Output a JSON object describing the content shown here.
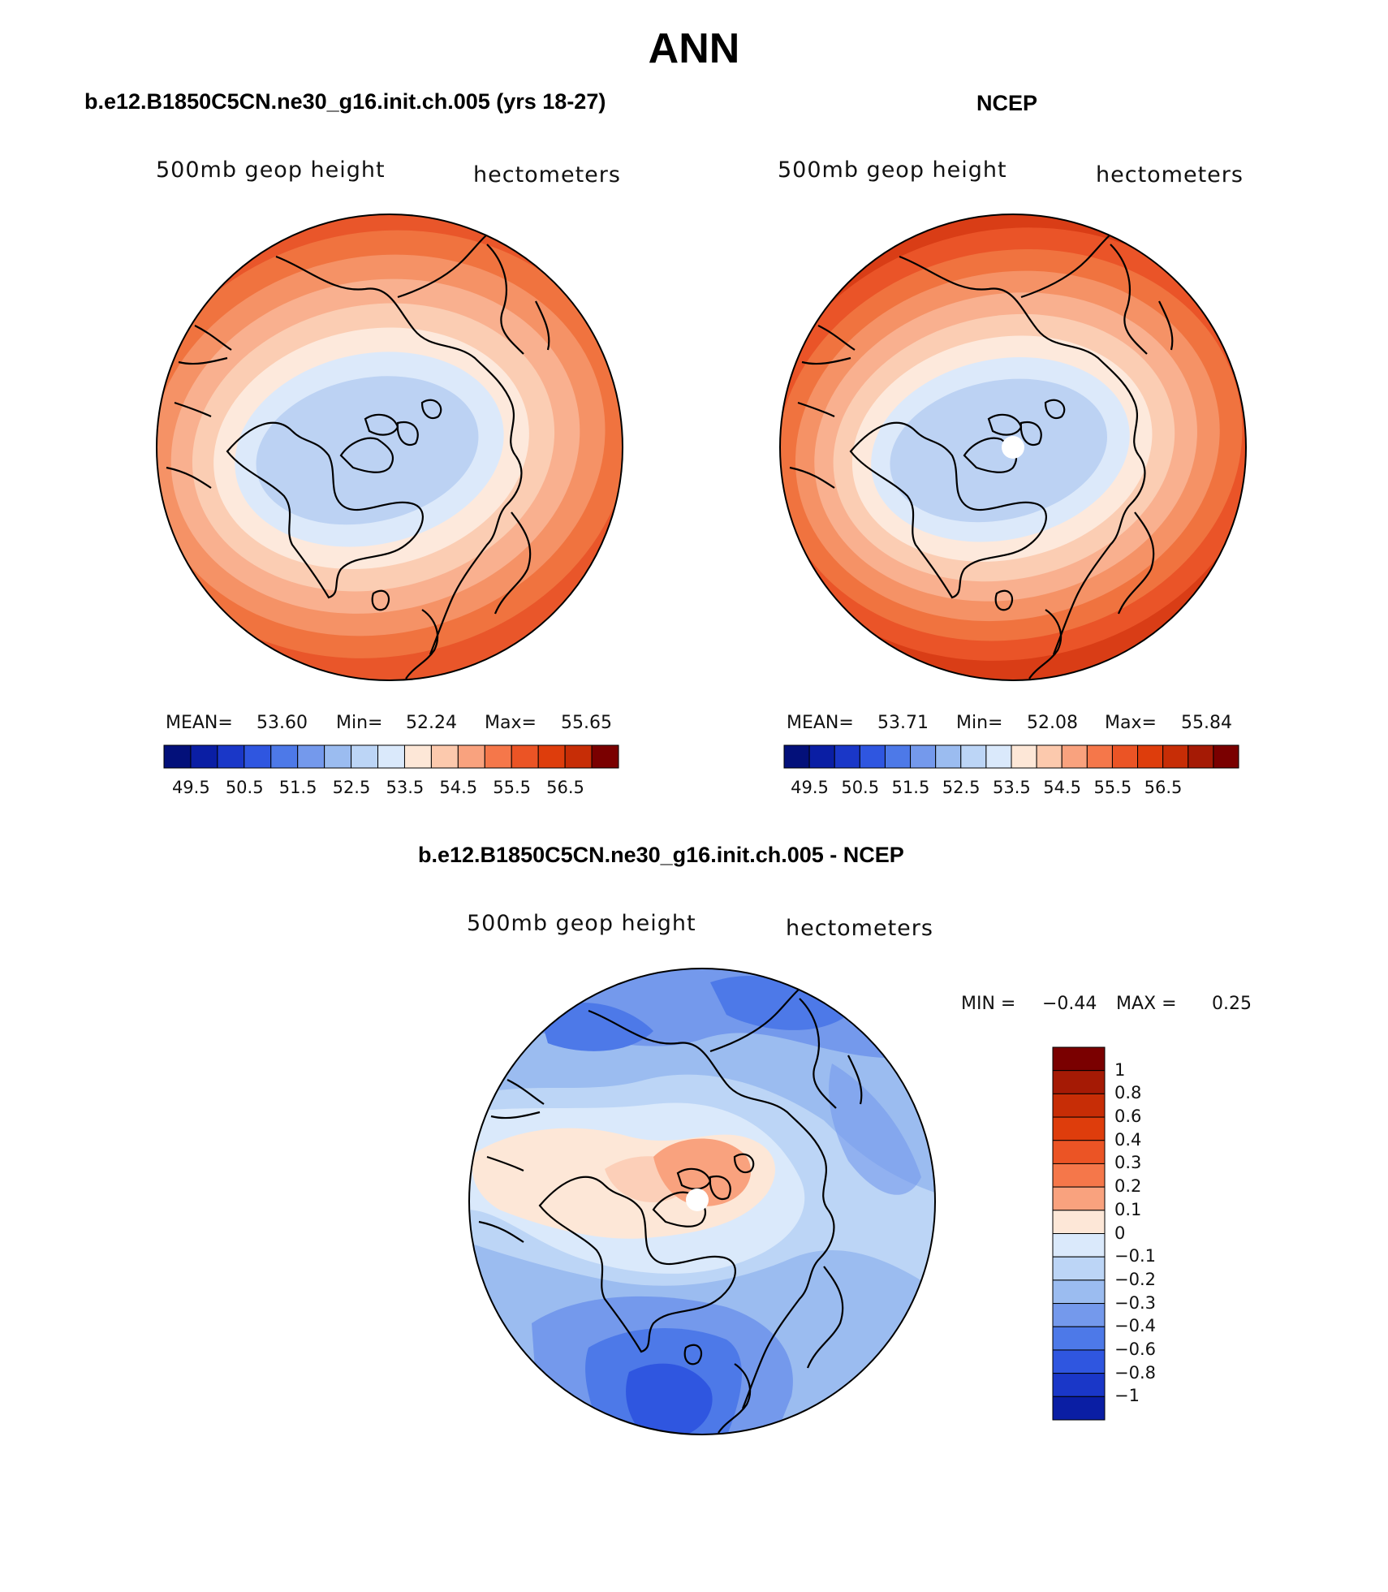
{
  "title": "ANN",
  "colors": {
    "outline": "#000000",
    "map_scale_top": [
      "#7a0000",
      "#a51a05",
      "#c72d06",
      "#de3d0c",
      "#eb5425",
      "#f5774a",
      "#f9a27e",
      "#fcc9ad",
      "#fde7d7",
      "#dae9fb",
      "#bcd5f6",
      "#9bbcf0",
      "#7499ec",
      "#4d79e8",
      "#2f56e0",
      "#1a37c8",
      "#0a1ea4",
      "#03107a"
    ],
    "diff_scale": [
      "#7a0000",
      "#a51a05",
      "#c72d06",
      "#de3d0c",
      "#eb5425",
      "#f5774a",
      "#f9a27e",
      "#fde7d7",
      "#dae9fb",
      "#bcd5f6",
      "#9bbcf0",
      "#7499ec",
      "#4d79e8",
      "#2f56e0",
      "#1a37c8",
      "#0a1ea4"
    ]
  },
  "panels": [
    {
      "id": "model",
      "title": "b.e12.B1850C5CN.ne30_g16.init.ch.005 (yrs 18-27)",
      "variable": "500mb geop height",
      "units": "hectometers",
      "stats": {
        "mean_label": "MEAN=",
        "mean": "53.60",
        "min_label": "Min=",
        "min": "52.24",
        "max_label": "Max=",
        "max": "55.65"
      },
      "colorbar_labels": [
        "49.5",
        "50.5",
        "51.5",
        "52.5",
        "53.5",
        "54.5",
        "55.5",
        "56.5"
      ],
      "colorbar_colors": [
        "#03107a",
        "#0a1ea4",
        "#1a37c8",
        "#2f56e0",
        "#4d79e8",
        "#7499ec",
        "#9bbcf0",
        "#bcd5f6",
        "#dae9fb",
        "#fde7d7",
        "#fcc9ad",
        "#f9a27e",
        "#f5774a",
        "#eb5425",
        "#de3d0c",
        "#c72d06",
        "#7a0000"
      ],
      "field_colors": [
        "#e9562a",
        "#f0733f",
        "#f59266",
        "#f9b08f",
        "#fbcdb3",
        "#fde9dc",
        "#dce9fa",
        "#bcd2f3"
      ]
    },
    {
      "id": "obs",
      "title": "NCEP",
      "variable": "500mb geop height",
      "units": "hectometers",
      "stats": {
        "mean_label": "MEAN=",
        "mean": "53.71",
        "min_label": "Min=",
        "min": "52.08",
        "max_label": "Max=",
        "max": "55.84"
      },
      "colorbar_labels": [
        "49.5",
        "50.5",
        "51.5",
        "52.5",
        "53.5",
        "54.5",
        "55.5",
        "56.5"
      ],
      "colorbar_colors": [
        "#03107a",
        "#0a1ea4",
        "#1a37c8",
        "#2f56e0",
        "#4d79e8",
        "#7499ec",
        "#9bbcf0",
        "#bcd5f6",
        "#dae9fb",
        "#fde7d7",
        "#fcc9ad",
        "#f9a27e",
        "#f5774a",
        "#eb5425",
        "#de3d0c",
        "#c72d06",
        "#a51a05",
        "#7a0000"
      ],
      "field_colors": [
        "#d93d16",
        "#ea5428",
        "#f0733f",
        "#f59266",
        "#f9b08f",
        "#fbcdb3",
        "#fde9dc",
        "#dce9fa",
        "#bcd2f3"
      ]
    }
  ],
  "difference": {
    "title": "b.e12.B1850C5CN.ne30_g16.init.ch.005 - NCEP",
    "variable": "500mb geop height",
    "units": "hectometers",
    "stats": {
      "min_label": "MIN =",
      "min": "−0.44",
      "max_label": "MAX =",
      "max": "0.25"
    },
    "colorbar_labels": [
      "1",
      "0.8",
      "0.6",
      "0.4",
      "0.3",
      "0.2",
      "0.1",
      "0",
      "−0.1",
      "−0.2",
      "−0.3",
      "−0.4",
      "−0.6",
      "−0.8",
      "−1"
    ],
    "colorbar_colors": [
      "#7a0000",
      "#a51a05",
      "#c72d06",
      "#de3d0c",
      "#eb5425",
      "#f5774a",
      "#f9a27e",
      "#fde7d7",
      "#dae9fb",
      "#bcd5f6",
      "#9bbcf0",
      "#7499ec",
      "#4d79e8",
      "#2f56e0",
      "#1a37c8",
      "#0a1ea4"
    ]
  }
}
